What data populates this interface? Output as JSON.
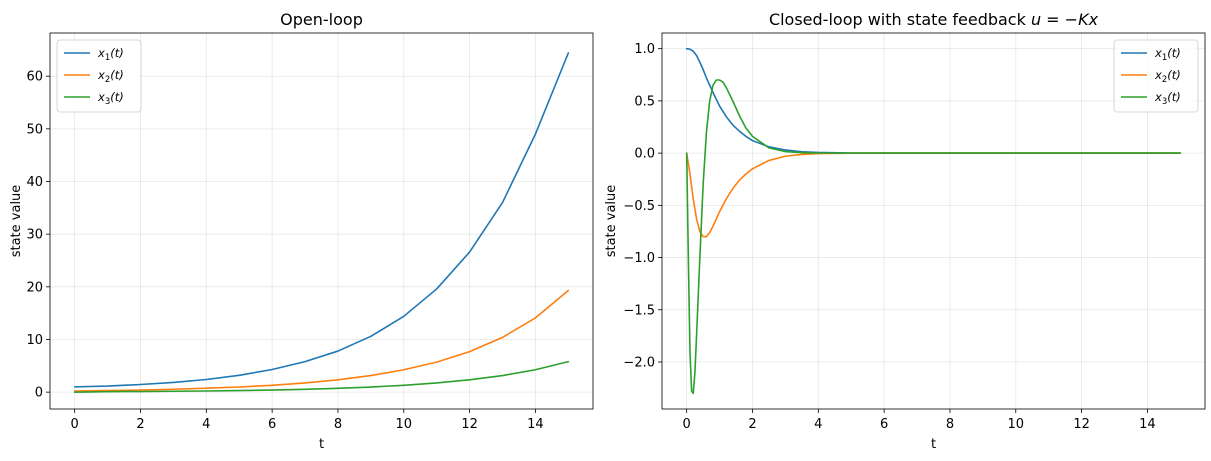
{
  "chart_data": [
    {
      "type": "line",
      "title": "Open-loop",
      "xlabel": "t",
      "ylabel": "state value",
      "xlim": [
        -0.75,
        15.75
      ],
      "ylim": [
        -3.2,
        68.2
      ],
      "xticks": [
        0,
        2,
        4,
        6,
        8,
        10,
        12,
        14
      ],
      "xtick_labels": [
        "0",
        "2",
        "4",
        "6",
        "8",
        "10",
        "12",
        "14"
      ],
      "yticks": [
        0,
        10,
        20,
        30,
        40,
        50,
        60
      ],
      "ytick_labels": [
        "0",
        "10",
        "20",
        "30",
        "40",
        "50",
        "60"
      ],
      "grid": true,
      "legend_position": "upper-left",
      "series": [
        {
          "name": "x1(t)",
          "name_parts": [
            "x",
            "1",
            "(t)"
          ],
          "color": "#1f77b4",
          "x": [
            0,
            1,
            2,
            3,
            4,
            5,
            6,
            7,
            8,
            9,
            10,
            11,
            12,
            13,
            14,
            15
          ],
          "values": [
            1.0,
            1.15,
            1.45,
            1.85,
            2.4,
            3.2,
            4.3,
            5.8,
            7.8,
            10.6,
            14.4,
            19.6,
            26.6,
            36.0,
            49.0,
            64.4
          ]
        },
        {
          "name": "x2(t)",
          "name_parts": [
            "x",
            "2",
            "(t)"
          ],
          "color": "#ff7f0e",
          "x": [
            0,
            1,
            2,
            3,
            4,
            5,
            6,
            7,
            8,
            9,
            10,
            11,
            12,
            13,
            14,
            15
          ],
          "values": [
            0.2,
            0.3,
            0.4,
            0.55,
            0.75,
            0.98,
            1.3,
            1.75,
            2.35,
            3.15,
            4.25,
            5.7,
            7.7,
            10.4,
            14.1,
            19.3
          ]
        },
        {
          "name": "x3(t)",
          "name_parts": [
            "x",
            "3",
            "(t)"
          ],
          "color": "#2ca02c",
          "x": [
            0,
            1,
            2,
            3,
            4,
            5,
            6,
            7,
            8,
            9,
            10,
            11,
            12,
            13,
            14,
            15
          ],
          "values": [
            0.0,
            0.08,
            0.12,
            0.17,
            0.22,
            0.3,
            0.4,
            0.54,
            0.72,
            0.97,
            1.3,
            1.75,
            2.35,
            3.15,
            4.25,
            5.8
          ]
        }
      ]
    },
    {
      "type": "line",
      "title": "Closed-loop with state feedback u = −Kx",
      "title_parts": {
        "prefix": "Closed-loop with state feedback ",
        "math": [
          "u",
          " = −",
          "Kx"
        ]
      },
      "xlabel": "t",
      "ylabel": "state value",
      "xlim": [
        -0.75,
        15.75
      ],
      "ylim": [
        -2.45,
        1.15
      ],
      "xticks": [
        0,
        2,
        4,
        6,
        8,
        10,
        12,
        14
      ],
      "xtick_labels": [
        "0",
        "2",
        "4",
        "6",
        "8",
        "10",
        "12",
        "14"
      ],
      "yticks": [
        1.0,
        0.5,
        0.0,
        -0.5,
        -1.0,
        -1.5,
        -2.0
      ],
      "ytick_labels": [
        "1.0",
        "0.5",
        "0.0",
        "−0.5",
        "−1.0",
        "−1.5",
        "−2.0"
      ],
      "grid": true,
      "legend_position": "upper-right",
      "series": [
        {
          "name": "x1(t)",
          "name_parts": [
            "x",
            "1",
            "(t)"
          ],
          "color": "#1f77b4",
          "x": [
            0,
            0.1,
            0.2,
            0.3,
            0.4,
            0.5,
            0.6,
            0.8,
            1.0,
            1.2,
            1.4,
            1.6,
            1.8,
            2.0,
            2.5,
            3.0,
            3.5,
            4.0,
            5.0,
            6.0,
            8.0,
            10.0,
            15.0
          ],
          "values": [
            1.0,
            0.995,
            0.975,
            0.935,
            0.87,
            0.8,
            0.72,
            0.58,
            0.45,
            0.35,
            0.27,
            0.21,
            0.16,
            0.12,
            0.06,
            0.03,
            0.013,
            0.006,
            0.001,
            0.0,
            0.0,
            0.0,
            0.0
          ]
        },
        {
          "name": "x2(t)",
          "name_parts": [
            "x",
            "2",
            "(t)"
          ],
          "color": "#ff7f0e",
          "x": [
            0,
            0.1,
            0.2,
            0.3,
            0.4,
            0.5,
            0.6,
            0.7,
            0.8,
            0.9,
            1.0,
            1.2,
            1.4,
            1.6,
            1.8,
            2.0,
            2.5,
            3.0,
            3.5,
            4.0,
            5.0,
            6.0,
            8.0,
            10.0,
            15.0
          ],
          "values": [
            0.0,
            -0.2,
            -0.44,
            -0.63,
            -0.75,
            -0.8,
            -0.8,
            -0.76,
            -0.7,
            -0.63,
            -0.56,
            -0.44,
            -0.34,
            -0.26,
            -0.2,
            -0.15,
            -0.07,
            -0.03,
            -0.013,
            -0.005,
            -0.001,
            0.0,
            0.0,
            0.0,
            0.0
          ]
        },
        {
          "name": "x3(t)",
          "name_parts": [
            "x",
            "3",
            "(t)"
          ],
          "color": "#2ca02c",
          "x": [
            0,
            0.05,
            0.1,
            0.15,
            0.2,
            0.25,
            0.3,
            0.4,
            0.5,
            0.6,
            0.7,
            0.8,
            0.9,
            1.0,
            1.1,
            1.2,
            1.4,
            1.6,
            1.8,
            2.0,
            2.5,
            3.0,
            3.5,
            4.0,
            5.0,
            6.0,
            8.0,
            15.0
          ],
          "values": [
            0.0,
            -1.0,
            -1.9,
            -2.28,
            -2.3,
            -2.1,
            -1.75,
            -1.0,
            -0.3,
            0.2,
            0.5,
            0.65,
            0.7,
            0.7,
            0.68,
            0.63,
            0.5,
            0.36,
            0.24,
            0.16,
            0.05,
            0.015,
            0.004,
            0.001,
            0.0,
            0.0,
            0.0,
            0.0
          ]
        }
      ]
    }
  ]
}
